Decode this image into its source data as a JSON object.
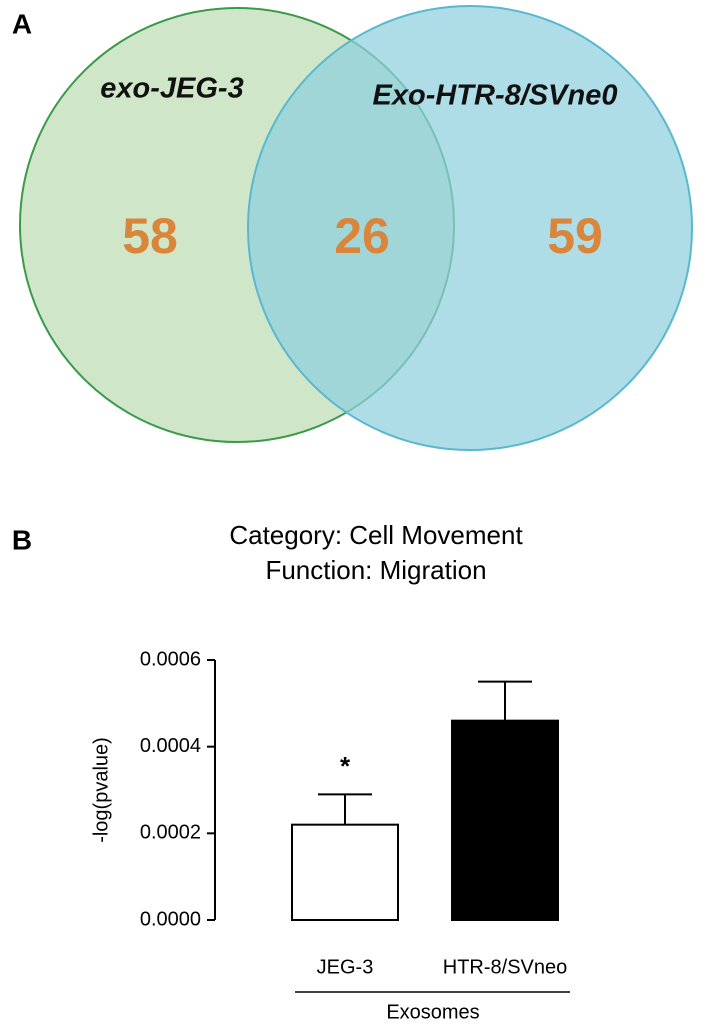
{
  "chart_data": [
    {
      "type": "venn",
      "panel": "A",
      "sets": [
        {
          "name": "exo-JEG-3",
          "fill": "#cfe6c8",
          "stroke": "#3a9a4a"
        },
        {
          "name": "Exo-HTR-8/SVne0",
          "fill": "#8fd0de",
          "stroke": "#58b8cf"
        }
      ],
      "counts": {
        "left_only": 58,
        "overlap": 26,
        "right_only": 59
      },
      "count_color": "#d9853b"
    },
    {
      "type": "bar",
      "panel": "B",
      "title": "Category: Cell Movement",
      "subtitle": "Function: Migration",
      "ylabel": "-log(pvalue)",
      "xlabel": "Exosomes",
      "categories": [
        "JEG-3",
        "HTR-8/SVneo"
      ],
      "values": [
        0.00022,
        0.00046
      ],
      "errors": [
        7e-05,
        9e-05
      ],
      "colors": [
        "#ffffff",
        "#000000"
      ],
      "significance": [
        "*",
        null
      ],
      "ylim": [
        0,
        0.0006
      ],
      "yticks": [
        {
          "value": 0,
          "label": "0.0000"
        },
        0.0002,
        0.0004,
        0.0006
      ]
    }
  ]
}
